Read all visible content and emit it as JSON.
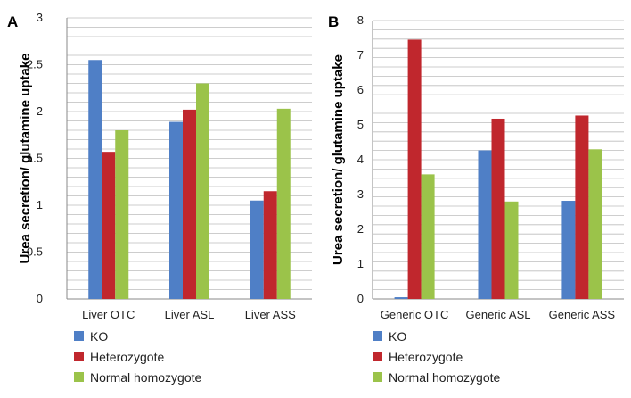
{
  "chart_data": [
    {
      "panel_label": "A",
      "type": "bar",
      "ylabel": "Urea secretion/ glutamine uptake",
      "xlabel": "",
      "ylim": [
        0,
        3
      ],
      "yticks": [
        "0",
        "0.5",
        "1",
        "1.5",
        "2",
        "2.5",
        "3"
      ],
      "grid": true,
      "categories": [
        "Liver  OTC",
        "Liver  ASL",
        "Liver  ASS"
      ],
      "series": [
        {
          "name": "KO",
          "color": "#4f7fc6",
          "values": [
            2.55,
            1.89,
            1.05
          ]
        },
        {
          "name": "Heterozygote",
          "color": "#c0272d",
          "values": [
            1.57,
            2.02,
            1.15
          ]
        },
        {
          "name": "Normal homozygote",
          "color": "#9bc34a",
          "values": [
            1.8,
            2.3,
            2.03
          ]
        }
      ],
      "legend_position": "bottom"
    },
    {
      "panel_label": "B",
      "type": "bar",
      "ylabel": "Urea secretion/ glutamine uptake",
      "xlabel": "",
      "ylim": [
        0,
        8
      ],
      "yticks": [
        "0",
        "1",
        "2",
        "3",
        "4",
        "5",
        "6",
        "7",
        "8"
      ],
      "grid": true,
      "categories": [
        "Generic  OTC",
        "Generic  ASL",
        "Generic  ASS"
      ],
      "series": [
        {
          "name": "KO",
          "color": "#4f7fc6",
          "values": [
            0.05,
            4.27,
            2.82
          ]
        },
        {
          "name": "Heterozygote",
          "color": "#c0272d",
          "values": [
            7.45,
            5.18,
            5.27
          ]
        },
        {
          "name": "Normal homozygote",
          "color": "#9bc34a",
          "values": [
            3.58,
            2.8,
            4.3
          ]
        }
      ],
      "legend_position": "bottom"
    }
  ]
}
